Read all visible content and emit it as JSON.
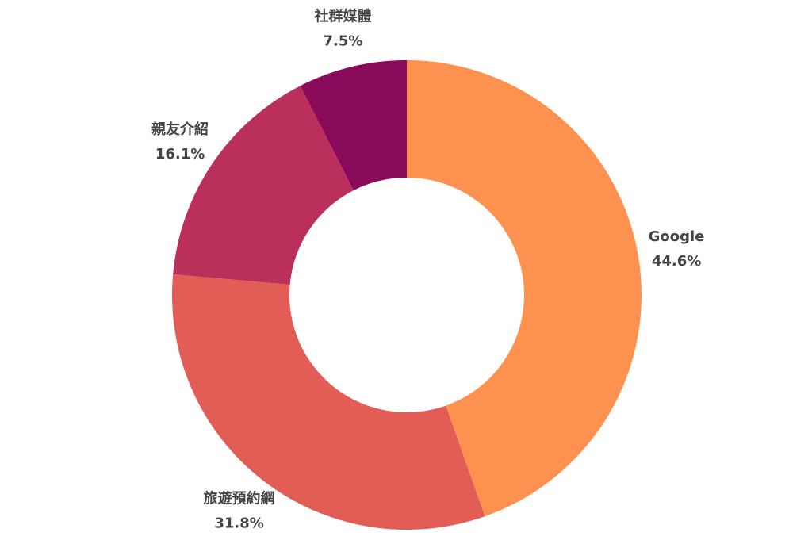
{
  "chart_data": {
    "type": "donut",
    "categories": [
      "Google",
      "旅遊預約網",
      "親友介紹",
      "社群媒體"
    ],
    "values": [
      44.6,
      31.8,
      16.1,
      7.5
    ],
    "value_labels": [
      "44.6%",
      "31.8%",
      "16.1%",
      "7.5%"
    ],
    "colors": [
      "#fd914f",
      "#e35d57",
      "#bb2f5b",
      "#8a0b5b"
    ]
  }
}
